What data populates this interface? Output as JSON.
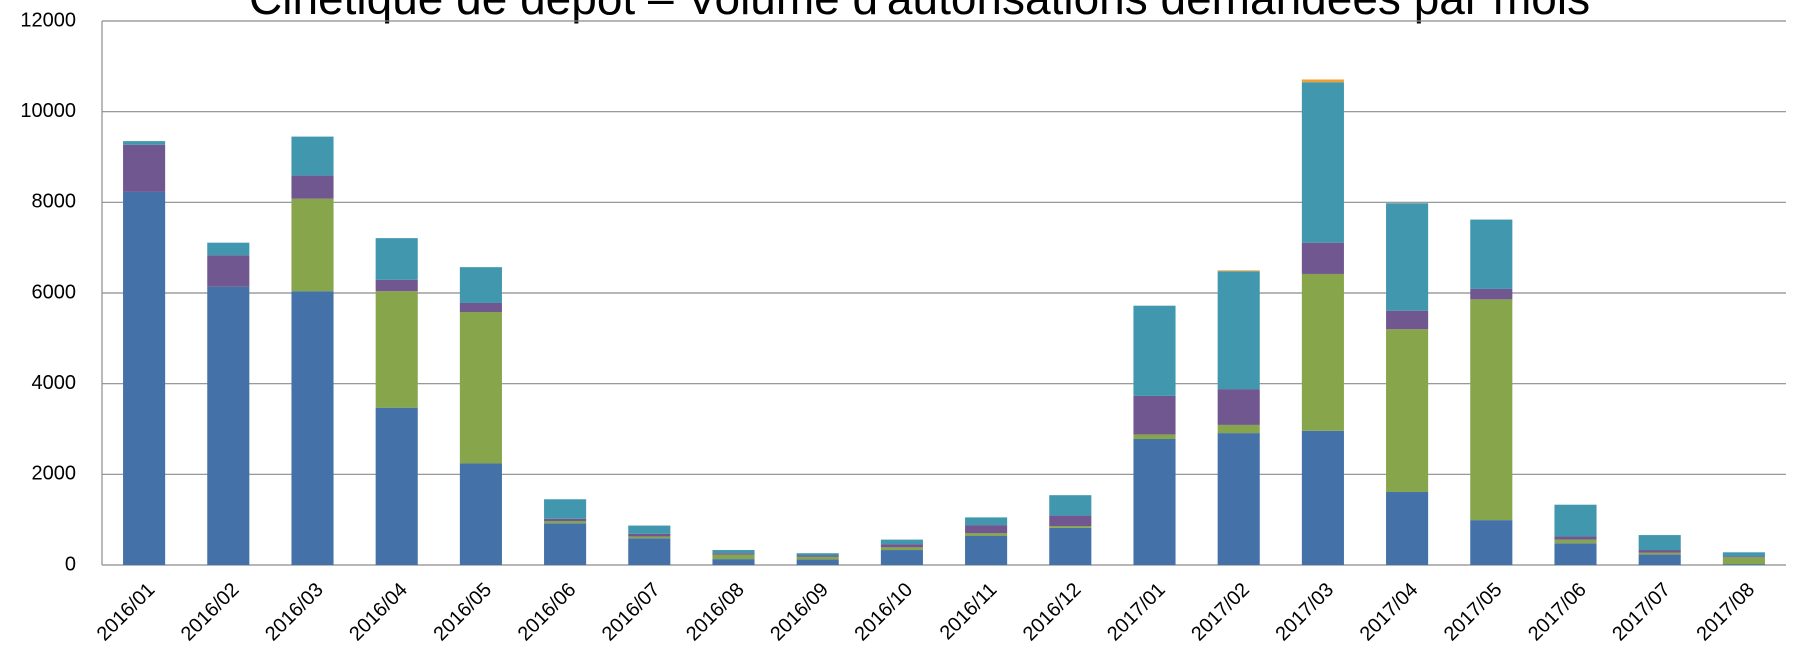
{
  "chart_data": {
    "type": "stacked_bar",
    "title": "Cinétique de dépôt – Volume d'autorisations demandées par mois",
    "categories": [
      "2016/01",
      "2016/02",
      "2016/03",
      "2016/04",
      "2016/05",
      "2016/06",
      "2016/07",
      "2016/08",
      "2016/09",
      "2016/10",
      "2016/11",
      "2016/12",
      "2017/01",
      "2017/02",
      "2017/03",
      "2017/04",
      "2017/05",
      "2017/06",
      "2017/07",
      "2017/08"
    ],
    "series": [
      {
        "color": "#4472a8",
        "values": [
          8230,
          6140,
          6040,
          3470,
          2240,
          920,
          590,
          130,
          120,
          330,
          640,
          820,
          2780,
          2910,
          2960,
          1610,
          990,
          480,
          230,
          20
        ]
      },
      {
        "color": "#87a54b",
        "values": [
          0,
          0,
          2040,
          2570,
          3340,
          50,
          40,
          100,
          60,
          60,
          60,
          40,
          100,
          180,
          3460,
          3590,
          4870,
          80,
          40,
          150
        ]
      },
      {
        "color": "#71578f",
        "values": [
          1040,
          690,
          510,
          250,
          200,
          50,
          60,
          30,
          30,
          70,
          180,
          230,
          850,
          790,
          690,
          410,
          230,
          70,
          60,
          20
        ]
      },
      {
        "color": "#4197ae",
        "values": [
          80,
          280,
          860,
          920,
          790,
          430,
          180,
          70,
          50,
          100,
          170,
          450,
          1990,
          2600,
          3540,
          2370,
          1530,
          700,
          330,
          90
        ]
      },
      {
        "color": "#f0a030",
        "values": [
          0,
          0,
          0,
          0,
          0,
          0,
          0,
          0,
          0,
          0,
          0,
          0,
          0,
          20,
          60,
          0,
          0,
          0,
          0,
          0
        ]
      }
    ],
    "ylim": [
      0,
      12000
    ],
    "yticks": [
      0,
      2000,
      4000,
      6000,
      8000,
      10000,
      12000
    ],
    "grid": true
  }
}
